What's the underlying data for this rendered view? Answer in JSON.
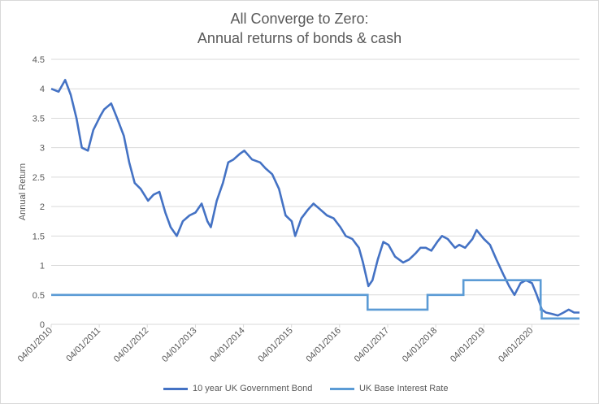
{
  "chart_data": {
    "type": "line",
    "title_line1": "All Converge to Zero:",
    "title_line2": "Annual returns of bonds & cash",
    "ylabel": "Annual Return",
    "ylim": [
      0,
      4.5
    ],
    "yticks": [
      "0",
      "0.5",
      "1",
      "1.5",
      "2",
      "2.5",
      "3",
      "3.5",
      "4",
      "4.5"
    ],
    "xticks": [
      "04/01/2010",
      "04/01/2011",
      "04/01/2012",
      "04/01/2013",
      "04/01/2014",
      "04/01/2015",
      "04/01/2016",
      "04/01/2017",
      "04/01/2018",
      "04/01/2019",
      "04/01/2020"
    ],
    "grid": true,
    "legend_position": "bottom",
    "colors": {
      "bond": "#4472c4",
      "rate": "#5b9bd5",
      "grid": "#d9d9d9",
      "text": "#595959"
    },
    "series": [
      {
        "name": "10 year UK Government Bond",
        "x": [
          "2010-01-04",
          "2010-03-01",
          "2010-04-20",
          "2010-06-01",
          "2010-07-15",
          "2010-08-25",
          "2010-10-10",
          "2010-11-20",
          "2011-01-15",
          "2011-02-10",
          "2011-04-05",
          "2011-05-20",
          "2011-07-10",
          "2011-08-20",
          "2011-09-30",
          "2011-11-15",
          "2012-01-10",
          "2012-02-20",
          "2012-04-05",
          "2012-05-20",
          "2012-06-30",
          "2012-08-15",
          "2012-09-30",
          "2012-11-20",
          "2013-01-05",
          "2013-02-20",
          "2013-04-05",
          "2013-05-01",
          "2013-06-15",
          "2013-08-01",
          "2013-09-10",
          "2013-10-20",
          "2013-12-10",
          "2014-01-10",
          "2014-03-10",
          "2014-05-10",
          "2014-06-20",
          "2014-08-10",
          "2014-10-01",
          "2014-11-20",
          "2015-01-05",
          "2015-02-01",
          "2015-03-20",
          "2015-05-10",
          "2015-06-20",
          "2015-08-10",
          "2015-09-30",
          "2015-11-20",
          "2016-01-10",
          "2016-02-20",
          "2016-04-10",
          "2016-05-30",
          "2016-06-30",
          "2016-08-10",
          "2016-09-10",
          "2016-10-20",
          "2016-12-01",
          "2017-01-10",
          "2017-03-01",
          "2017-05-01",
          "2017-06-15",
          "2017-08-01",
          "2017-09-10",
          "2017-10-20",
          "2017-12-01",
          "2018-01-15",
          "2018-02-20",
          "2018-04-05",
          "2018-05-30",
          "2018-07-01",
          "2018-08-15",
          "2018-10-10",
          "2018-11-10",
          "2019-01-05",
          "2019-02-20",
          "2019-04-10",
          "2019-06-01",
          "2019-07-15",
          "2019-08-25",
          "2019-10-10",
          "2019-11-20",
          "2020-01-05",
          "2020-02-10",
          "2020-03-05",
          "2020-03-20",
          "2020-04-20",
          "2020-06-01",
          "2020-07-20",
          "2020-09-01",
          "2020-10-10",
          "2020-11-20",
          "2020-12-31"
        ],
        "values": [
          4.0,
          3.95,
          4.15,
          3.9,
          3.5,
          3.0,
          2.95,
          3.3,
          3.55,
          3.65,
          3.75,
          3.5,
          3.2,
          2.75,
          2.4,
          2.3,
          2.1,
          2.2,
          2.25,
          1.9,
          1.65,
          1.5,
          1.75,
          1.85,
          1.9,
          2.05,
          1.75,
          1.65,
          2.1,
          2.4,
          2.75,
          2.8,
          2.9,
          2.95,
          2.8,
          2.75,
          2.65,
          2.55,
          2.3,
          1.85,
          1.75,
          1.5,
          1.8,
          1.95,
          2.05,
          1.95,
          1.85,
          1.8,
          1.65,
          1.5,
          1.45,
          1.3,
          1.05,
          0.65,
          0.75,
          1.1,
          1.4,
          1.35,
          1.15,
          1.05,
          1.1,
          1.2,
          1.3,
          1.3,
          1.25,
          1.4,
          1.5,
          1.45,
          1.3,
          1.35,
          1.3,
          1.45,
          1.6,
          1.45,
          1.35,
          1.1,
          0.85,
          0.65,
          0.5,
          0.7,
          0.75,
          0.7,
          0.5,
          0.35,
          0.25,
          0.2,
          0.18,
          0.15,
          0.2,
          0.25,
          0.2,
          0.2
        ]
      },
      {
        "name": "UK Base Interest Rate",
        "x": [
          "2010-01-04",
          "2016-08-04",
          "2016-08-04",
          "2017-11-02",
          "2017-11-02",
          "2018-08-02",
          "2018-08-02",
          "2020-03-11",
          "2020-03-11",
          "2020-03-19",
          "2020-03-19",
          "2020-12-31"
        ],
        "values": [
          0.5,
          0.5,
          0.25,
          0.25,
          0.5,
          0.5,
          0.75,
          0.75,
          0.25,
          0.25,
          0.1,
          0.1
        ]
      }
    ]
  }
}
